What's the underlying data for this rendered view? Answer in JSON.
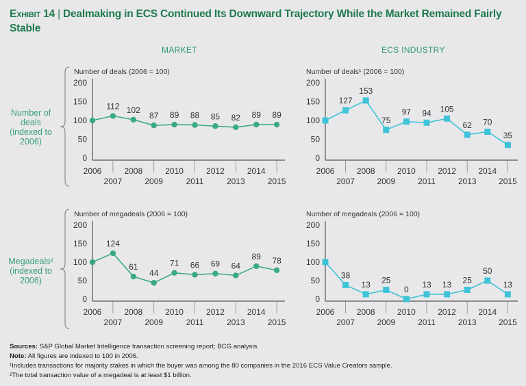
{
  "header": {
    "exhibit": "Exhibit 14",
    "title": "Dealmaking in ECS Continued Its Downward Trajectory While the Market Remained Fairly Stable"
  },
  "columns": [
    "MARKET",
    "ECS INDUSTRY"
  ],
  "rows": [
    {
      "label_lines": [
        "Number of",
        "deals",
        "(indexed to",
        "2006)"
      ]
    },
    {
      "label_lines": [
        "Megadeals²",
        "(indexed to",
        "2006)"
      ]
    }
  ],
  "colors": {
    "market": "#3aaa80",
    "ecs": "#3ec3d8",
    "title": "#1e7a4e",
    "axis": "#555555"
  },
  "chart_data": [
    {
      "type": "line",
      "panel": "market-deals",
      "title": "Number of deals (2006 = 100)",
      "x": [
        2006,
        2007,
        2008,
        2009,
        2010,
        2011,
        2012,
        2013,
        2014,
        2015
      ],
      "values": [
        100,
        112,
        102,
        87,
        89,
        88,
        85,
        82,
        89,
        89
      ],
      "data_labels": [
        "",
        "112",
        "102",
        "87",
        "89",
        "88",
        "85",
        "82",
        "89",
        "89"
      ],
      "yticks": [
        0,
        50,
        100,
        150,
        200
      ],
      "ylim": [
        0,
        200
      ],
      "marker": "circle",
      "series_color": "market"
    },
    {
      "type": "line",
      "panel": "ecs-deals",
      "title": "Number of deals¹ (2006 = 100)",
      "x": [
        2006,
        2007,
        2008,
        2009,
        2010,
        2011,
        2012,
        2013,
        2014,
        2015
      ],
      "values": [
        100,
        127,
        153,
        75,
        97,
        94,
        105,
        62,
        70,
        35
      ],
      "data_labels": [
        "",
        "127",
        "153",
        "75",
        "97",
        "94",
        "105",
        "62",
        "70",
        "35"
      ],
      "yticks": [
        0,
        50,
        100,
        150,
        200
      ],
      "ylim": [
        0,
        200
      ],
      "marker": "square",
      "series_color": "ecs"
    },
    {
      "type": "line",
      "panel": "market-megadeals",
      "title": "Number of megadeals (2006 = 100)",
      "x": [
        2006,
        2007,
        2008,
        2009,
        2010,
        2011,
        2012,
        2013,
        2014,
        2015
      ],
      "values": [
        100,
        124,
        61,
        44,
        71,
        66,
        69,
        64,
        89,
        78
      ],
      "data_labels": [
        "",
        "124",
        "61",
        "44",
        "71",
        "66",
        "69",
        "64",
        "89",
        "78"
      ],
      "yticks": [
        0,
        50,
        100,
        150,
        200
      ],
      "ylim": [
        0,
        200
      ],
      "marker": "circle",
      "series_color": "market"
    },
    {
      "type": "line",
      "panel": "ecs-megadeals",
      "title": "Number of megadeals (2006 = 100)",
      "x": [
        2006,
        2007,
        2008,
        2009,
        2010,
        2011,
        2012,
        2013,
        2014,
        2015
      ],
      "values": [
        100,
        38,
        13,
        25,
        0,
        13,
        13,
        25,
        50,
        13
      ],
      "data_labels": [
        "",
        "38",
        "13",
        "25",
        "0",
        "13",
        "13",
        "25",
        "50",
        "13"
      ],
      "yticks": [
        0,
        50,
        100,
        150,
        200
      ],
      "ylim": [
        0,
        200
      ],
      "marker": "square",
      "series_color": "ecs"
    }
  ],
  "footer": {
    "sources_label": "Sources:",
    "sources": "S&P Global Market Intelligence transaction screening report; BCG analysis.",
    "note_label": "Note:",
    "note": "All figures are indexed to 100 in 2006.",
    "footnote1": "¹Includes transactions for majority stakes in which the buyer was among the 80 companies in the 2016 ECS Value Creators sample.",
    "footnote2": "²The total transaction value of a megadeal is at least $1 billion."
  }
}
